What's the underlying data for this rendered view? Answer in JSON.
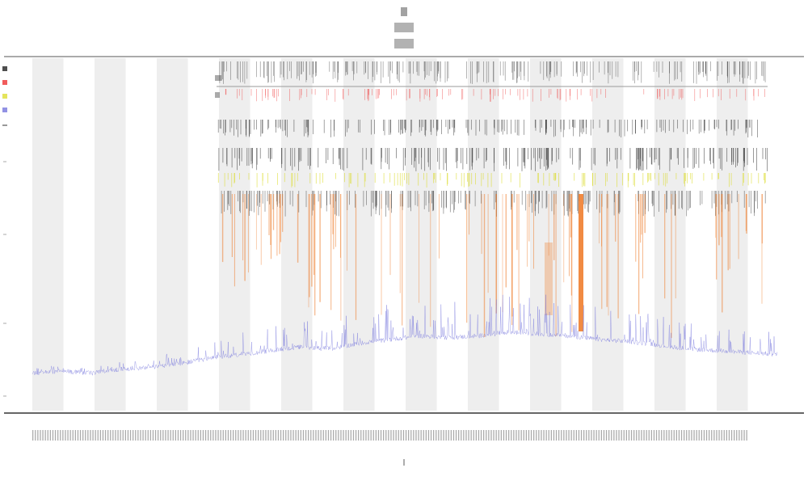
{
  "colors": {
    "background": "#ffffff",
    "band": "#eeeeee",
    "signal": "#7777dd",
    "black_track": "#222222",
    "red_track": "#ee3333",
    "yellow_track": "#dddd33",
    "orange_track": "#ee7722",
    "axis": "#555555"
  },
  "chart_data": [
    {
      "type": "line",
      "title": "",
      "xlabel": "",
      "ylabel": "",
      "grid": false,
      "legend_position": "top-left",
      "x_bands": 12,
      "series": [
        {
          "color": "#7777dd",
          "x": [
            0,
            4,
            8,
            12,
            16,
            20,
            24,
            28,
            32,
            36,
            40,
            44,
            48,
            52,
            56,
            60,
            64,
            68,
            72,
            76,
            80,
            84,
            88,
            92,
            96,
            100
          ],
          "values": [
            0.02,
            0.03,
            0.02,
            0.04,
            0.05,
            0.07,
            0.1,
            0.12,
            0.14,
            0.16,
            0.15,
            0.18,
            0.2,
            0.22,
            0.21,
            0.22,
            0.24,
            0.23,
            0.22,
            0.2,
            0.19,
            0.17,
            0.15,
            0.14,
            0.13,
            0.12
          ]
        }
      ],
      "tracks": [
        {
          "color": "#222222",
          "role": "top ticks"
        },
        {
          "color": "#ee3333",
          "role": "red ticks"
        },
        {
          "color": "#222222",
          "role": "middle ticks"
        },
        {
          "color": "#222222",
          "role": "lower ticks"
        },
        {
          "color": "#dddd33",
          "role": "yellow ticks"
        },
        {
          "color": "#222222",
          "role": "dense ticks"
        },
        {
          "color": "#ee7722",
          "role": "orange spikes"
        }
      ]
    }
  ]
}
